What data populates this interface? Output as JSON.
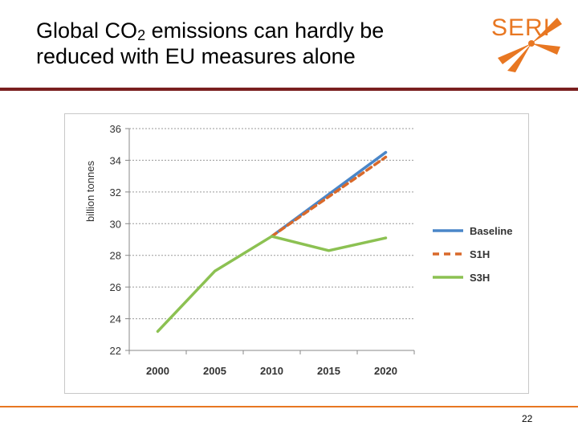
{
  "slide": {
    "title_line1_pre": "Global CO",
    "title_sub": "2",
    "title_line1_post": " emissions can hardly be",
    "title_line2": "reduced with EU measures alone",
    "logo_text": "SERI",
    "page_number": "22"
  },
  "colors": {
    "brand_orange": "#e87722",
    "rule_dark_red": "#7a1f1f",
    "baseline": "#4a86c8",
    "s1h": "#d9692a",
    "s3h": "#8cc152"
  },
  "chart_data": {
    "type": "line",
    "ylabel": "billion tonnes",
    "xlabel": "",
    "ylim": [
      22,
      36
    ],
    "yticks": [
      22,
      24,
      26,
      28,
      30,
      32,
      34,
      36
    ],
    "xticks": [
      2000,
      2005,
      2010,
      2015,
      2020
    ],
    "xlim": [
      1997.5,
      2022.5
    ],
    "grid": true,
    "legend_position": "right",
    "series": [
      {
        "name": "Baseline",
        "style": "solid",
        "color": "#4a86c8",
        "x": [
          2010,
          2020
        ],
        "y": [
          29.2,
          34.5
        ]
      },
      {
        "name": "S1H",
        "style": "dashed",
        "color": "#d9692a",
        "x": [
          2010,
          2020
        ],
        "y": [
          29.2,
          34.2
        ]
      },
      {
        "name": "S3H",
        "style": "solid",
        "color": "#8cc152",
        "x": [
          2000,
          2005,
          2010,
          2015,
          2020
        ],
        "y": [
          23.2,
          27.0,
          29.2,
          28.3,
          29.1
        ]
      }
    ]
  }
}
